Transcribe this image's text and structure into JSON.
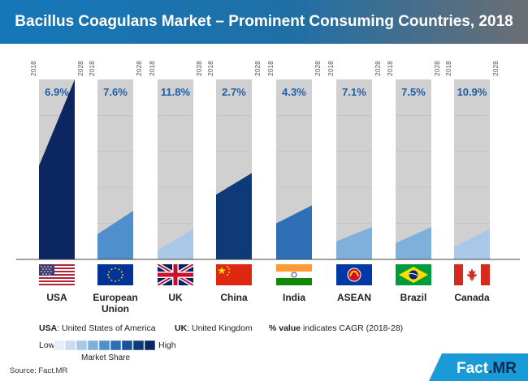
{
  "title": "Bacillus Coagulans Market – Prominent Consuming Countries, 2018",
  "chart_data": {
    "type": "area",
    "year_start": "2018",
    "year_end": "2028",
    "categories": [
      "USA",
      "European Union",
      "UK",
      "China",
      "India",
      "ASEAN",
      "Brazil",
      "Canada"
    ],
    "category_lines": [
      [
        "USA"
      ],
      [
        "European",
        "Union"
      ],
      [
        "UK"
      ],
      [
        "China"
      ],
      [
        "India"
      ],
      [
        "ASEAN"
      ],
      [
        "Brazil"
      ],
      [
        "Canada"
      ]
    ],
    "cagr_labels": [
      "6.9%",
      "7.6%",
      "11.8%",
      "2.7%",
      "4.3%",
      "7.1%",
      "7.5%",
      "10.9%"
    ],
    "share_2018": [
      0.52,
      0.14,
      0.05,
      0.36,
      0.2,
      0.1,
      0.09,
      0.07
    ],
    "share_2028": [
      1.0,
      0.27,
      0.17,
      0.48,
      0.3,
      0.18,
      0.18,
      0.17
    ],
    "share_level": [
      8,
      4,
      2,
      7,
      5,
      3,
      3,
      2
    ],
    "grid": true
  },
  "legend": {
    "usa_abbr": "USA",
    "usa_full": ": United States of America",
    "uk_abbr": "UK",
    "uk_full": ": United Kingdom",
    "cagr_bold": "% value",
    "cagr_text": " indicates CAGR (2018-28)",
    "scale_low": "Low",
    "scale_high": "High",
    "scale_title": "Market Share",
    "scale_colors": [
      "#e6eef8",
      "#ccdcef",
      "#a9c7e6",
      "#7fb0dc",
      "#4f8fcb",
      "#2e6fb6",
      "#1a5299",
      "#0f3a78",
      "#0b2660"
    ]
  },
  "source": "Source: Fact.MR",
  "logo": {
    "text": "Fact",
    "suffix": ".MR"
  },
  "colors": {
    "banner_start": "#1577b8",
    "banner_end": "#6b6e73",
    "column_bg": "#d0d0d0",
    "cagr_text": "#1f5fa8",
    "logo_accent": "#1a9ad6"
  }
}
